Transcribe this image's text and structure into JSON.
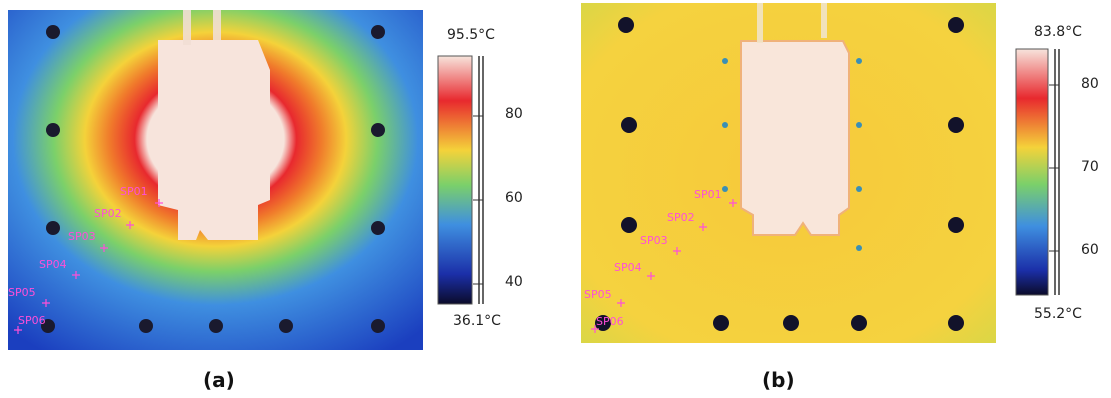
{
  "panels": [
    {
      "id": "a",
      "caption": "(a)",
      "scale_max_label": "95.5°C",
      "scale_min_label": "36.1°C",
      "scale_ticks": [
        "80",
        "60",
        "40"
      ],
      "spots": [
        "SP01",
        "SP02",
        "SP03",
        "SP04",
        "SP05",
        "SP06"
      ]
    },
    {
      "id": "b",
      "caption": "(b)",
      "scale_max_label": "83.8°C",
      "scale_min_label": "55.2°C",
      "scale_ticks": [
        "80",
        "70",
        "60"
      ],
      "spots": [
        "SP01",
        "SP02",
        "SP03",
        "SP04",
        "SP05",
        "SP06"
      ]
    }
  ],
  "colors": {
    "cold": "#1b3fbf",
    "cool": "#3f8fe0",
    "mid": "#7bd06a",
    "warm": "#f4d23a",
    "hot": "#e8292e",
    "max": "#f7e4dc",
    "spot_marker": "#ff4fd8"
  }
}
